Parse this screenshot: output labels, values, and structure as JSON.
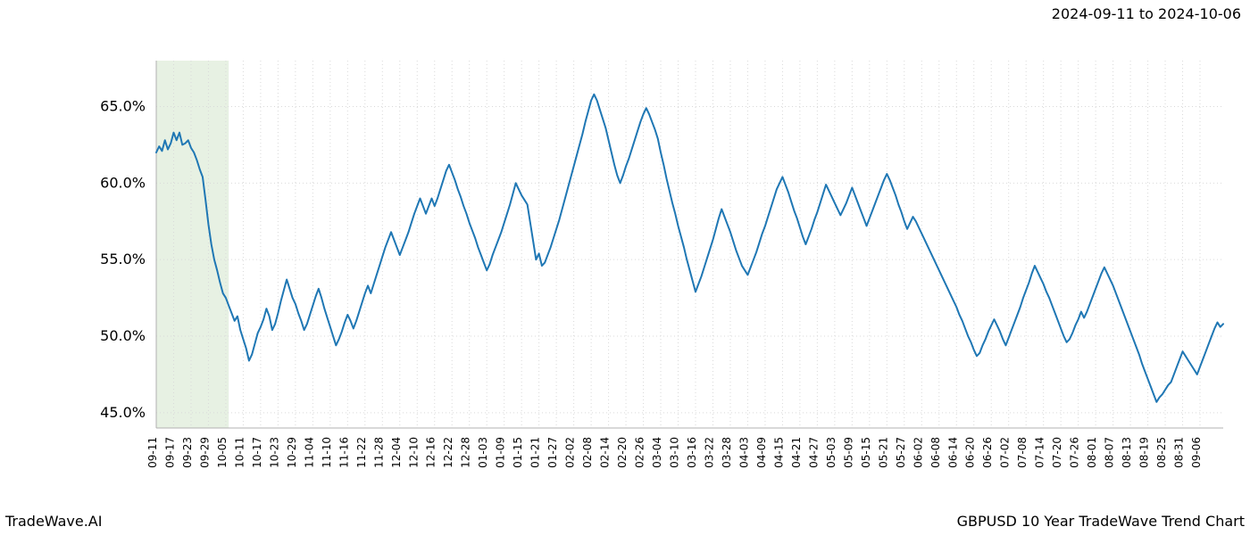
{
  "top_right_label": "2024-09-11 to 2024-10-06",
  "bottom_left_label": "TradeWave.AI",
  "bottom_right_label": "GBPUSD 10 Year TradeWave Trend Chart",
  "chart": {
    "type": "line",
    "background_color": "#ffffff",
    "plot_border_color": "#b0b0b0",
    "grid_color": "#d9d9d9",
    "grid_dash": "1,3",
    "line_color": "#1f77b4",
    "line_width": 2.0,
    "highlight_band": {
      "x_start_index": 0,
      "x_end_index": 25,
      "fill_color": "#d7e8d1",
      "fill_opacity": 0.6
    },
    "y_axis": {
      "min": 44.0,
      "max": 68.0,
      "ticks": [
        45.0,
        50.0,
        55.0,
        60.0,
        65.0
      ],
      "tick_format_suffix": "%",
      "tick_format_decimals": 1,
      "label_fontsize": 16
    },
    "x_axis": {
      "tick_interval": 6,
      "tick_labels": [
        "09-11",
        "09-17",
        "09-23",
        "09-29",
        "10-05",
        "10-11",
        "10-17",
        "10-23",
        "10-29",
        "11-04",
        "11-10",
        "11-16",
        "11-22",
        "11-28",
        "12-04",
        "12-10",
        "12-16",
        "12-22",
        "12-28",
        "01-03",
        "01-09",
        "01-15",
        "01-21",
        "01-27",
        "02-02",
        "02-08",
        "02-14",
        "02-20",
        "02-26",
        "03-04",
        "03-10",
        "03-16",
        "03-22",
        "03-28",
        "04-03",
        "04-09",
        "04-15",
        "04-21",
        "04-27",
        "05-03",
        "05-09",
        "05-15",
        "05-21",
        "05-27",
        "06-02",
        "06-08",
        "06-14",
        "06-20",
        "06-26",
        "07-02",
        "07-08",
        "07-14",
        "07-20",
        "07-26",
        "08-01",
        "08-07",
        "08-13",
        "08-19",
        "08-25",
        "08-31",
        "09-06"
      ],
      "label_fontsize": 12,
      "label_rotation": -90
    },
    "values": [
      62.0,
      62.4,
      62.1,
      62.8,
      62.2,
      62.6,
      63.3,
      62.8,
      63.3,
      62.5,
      62.6,
      62.8,
      62.3,
      62.0,
      61.5,
      60.9,
      60.4,
      58.9,
      57.3,
      56.0,
      55.0,
      54.3,
      53.5,
      52.8,
      52.5,
      52.0,
      51.5,
      51.0,
      51.3,
      50.4,
      49.8,
      49.2,
      48.4,
      48.8,
      49.5,
      50.2,
      50.6,
      51.1,
      51.8,
      51.3,
      50.4,
      50.8,
      51.5,
      52.3,
      53.0,
      53.7,
      53.1,
      52.5,
      52.1,
      51.5,
      51.0,
      50.4,
      50.8,
      51.4,
      52.0,
      52.6,
      53.1,
      52.5,
      51.8,
      51.2,
      50.6,
      50.0,
      49.4,
      49.8,
      50.3,
      50.9,
      51.4,
      51.0,
      50.5,
      51.0,
      51.6,
      52.2,
      52.8,
      53.3,
      52.8,
      53.4,
      54.0,
      54.6,
      55.2,
      55.8,
      56.3,
      56.8,
      56.3,
      55.8,
      55.3,
      55.8,
      56.3,
      56.8,
      57.4,
      58.0,
      58.5,
      59.0,
      58.5,
      58.0,
      58.5,
      59.0,
      58.5,
      59.0,
      59.6,
      60.2,
      60.8,
      61.2,
      60.7,
      60.2,
      59.6,
      59.1,
      58.5,
      58.0,
      57.4,
      56.9,
      56.4,
      55.8,
      55.3,
      54.8,
      54.3,
      54.7,
      55.3,
      55.8,
      56.3,
      56.8,
      57.4,
      58.0,
      58.6,
      59.3,
      60.0,
      59.6,
      59.2,
      58.9,
      58.6,
      57.4,
      56.2,
      55.0,
      55.4,
      54.6,
      54.8,
      55.3,
      55.8,
      56.4,
      57.0,
      57.6,
      58.3,
      59.0,
      59.7,
      60.4,
      61.1,
      61.8,
      62.5,
      63.2,
      64.0,
      64.7,
      65.4,
      65.8,
      65.4,
      64.8,
      64.2,
      63.6,
      62.8,
      62.0,
      61.2,
      60.5,
      60.0,
      60.5,
      61.1,
      61.6,
      62.2,
      62.8,
      63.4,
      64.0,
      64.5,
      64.9,
      64.5,
      64.0,
      63.5,
      62.9,
      62.0,
      61.2,
      60.3,
      59.5,
      58.7,
      58.0,
      57.2,
      56.5,
      55.8,
      55.0,
      54.3,
      53.6,
      52.9,
      53.4,
      53.9,
      54.5,
      55.1,
      55.7,
      56.3,
      57.0,
      57.7,
      58.3,
      57.8,
      57.3,
      56.8,
      56.2,
      55.6,
      55.1,
      54.6,
      54.3,
      54.0,
      54.5,
      55.0,
      55.5,
      56.1,
      56.7,
      57.2,
      57.8,
      58.4,
      59.0,
      59.6,
      60.0,
      60.4,
      59.9,
      59.4,
      58.8,
      58.2,
      57.7,
      57.1,
      56.5,
      56.0,
      56.5,
      57.0,
      57.6,
      58.1,
      58.7,
      59.3,
      59.9,
      59.5,
      59.1,
      58.7,
      58.3,
      57.9,
      58.3,
      58.7,
      59.2,
      59.7,
      59.2,
      58.7,
      58.2,
      57.7,
      57.2,
      57.7,
      58.2,
      58.7,
      59.2,
      59.7,
      60.2,
      60.6,
      60.2,
      59.7,
      59.2,
      58.6,
      58.1,
      57.5,
      57.0,
      57.4,
      57.8,
      57.5,
      57.1,
      56.7,
      56.3,
      55.9,
      55.5,
      55.1,
      54.7,
      54.3,
      53.9,
      53.5,
      53.1,
      52.7,
      52.3,
      51.9,
      51.4,
      51.0,
      50.5,
      50.0,
      49.6,
      49.1,
      48.7,
      48.9,
      49.4,
      49.8,
      50.3,
      50.7,
      51.1,
      50.7,
      50.3,
      49.8,
      49.4,
      49.9,
      50.4,
      50.9,
      51.4,
      51.9,
      52.5,
      53.0,
      53.5,
      54.1,
      54.6,
      54.2,
      53.8,
      53.4,
      52.9,
      52.5,
      52.0,
      51.5,
      51.0,
      50.5,
      50.0,
      49.6,
      49.8,
      50.2,
      50.7,
      51.1,
      51.6,
      51.2,
      51.6,
      52.1,
      52.6,
      53.1,
      53.6,
      54.1,
      54.5,
      54.1,
      53.7,
      53.3,
      52.8,
      52.3,
      51.8,
      51.3,
      50.8,
      50.3,
      49.8,
      49.3,
      48.8,
      48.2,
      47.7,
      47.2,
      46.7,
      46.2,
      45.7,
      46.0,
      46.2,
      46.5,
      46.8,
      47.0,
      47.5,
      48.0,
      48.5,
      49.0,
      48.7,
      48.4,
      48.1,
      47.8,
      47.5,
      48.0,
      48.5,
      49.0,
      49.5,
      50.0,
      50.5,
      50.9,
      50.6,
      50.8
    ]
  }
}
